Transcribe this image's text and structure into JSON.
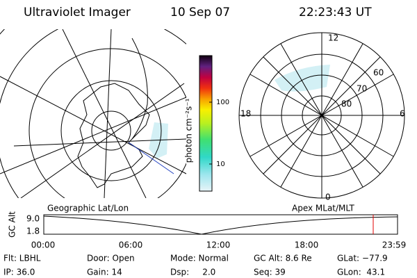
{
  "header": {
    "instrument": "Ultraviolet Imager",
    "date": "10 Sep 07",
    "time": "22:23:43 UT"
  },
  "polar_map": {
    "mlt_labels": [
      "12",
      "6",
      "0",
      "18"
    ],
    "mlat_labels": [
      "60",
      "70",
      "80"
    ]
  },
  "colorbar": {
    "label": "photon cm⁻²s⁻¹",
    "ticks": [
      "100",
      "10"
    ]
  },
  "altitude_plot": {
    "left_title": "Geographic Lat/Lon",
    "right_title": "Apex MLat/MLT",
    "y_label": "GC Alt",
    "y_ticks": [
      "9.0",
      "1.8"
    ],
    "x_ticks": [
      "00:00",
      "06:00",
      "12:00",
      "18:00",
      "23:59"
    ]
  },
  "status": {
    "rows": [
      [
        "Flt: LBHL",
        "Door: Open",
        "Mode: Normal",
        "GC Alt: 8.6 Re",
        "GLat: −77.9"
      ],
      [
        "IP: 36.0",
        "Gain: 14",
        "Dsp:     2.0",
        "Seq: 39",
        "GLon:  43.1"
      ]
    ]
  }
}
